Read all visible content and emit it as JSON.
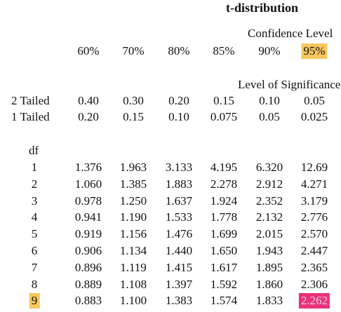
{
  "header": {
    "title": "t-distribution",
    "confidence_label": "Confidence Level",
    "significance_label": "Level of Significance"
  },
  "table": {
    "percents": [
      "60%",
      "70%",
      "80%",
      "85%",
      "90%",
      "95%"
    ],
    "tails": [
      {
        "label": "2 Tailed",
        "values": [
          "0.40",
          "0.30",
          "0.20",
          "0.15",
          "0.10",
          "0.05"
        ]
      },
      {
        "label": "1 Tailed",
        "values": [
          "0.20",
          "0.15",
          "0.10",
          "0.075",
          "0.05",
          "0.025"
        ]
      }
    ],
    "df_label": "df",
    "rows": [
      {
        "df": "1",
        "values": [
          "1.376",
          "1.963",
          "3.133",
          "4.195",
          "6.320",
          "12.69"
        ]
      },
      {
        "df": "2",
        "values": [
          "1.060",
          "1.385",
          "1.883",
          "2.278",
          "2.912",
          "4.271"
        ]
      },
      {
        "df": "3",
        "values": [
          "0.978",
          "1.250",
          "1.637",
          "1.924",
          "2.352",
          "3.179"
        ]
      },
      {
        "df": "4",
        "values": [
          "0.941",
          "1.190",
          "1.533",
          "1.778",
          "2.132",
          "2.776"
        ]
      },
      {
        "df": "5",
        "values": [
          "0.919",
          "1.156",
          "1.476",
          "1.699",
          "2.015",
          "2.570"
        ]
      },
      {
        "df": "6",
        "values": [
          "0.906",
          "1.134",
          "1.440",
          "1.650",
          "1.943",
          "2.447"
        ]
      },
      {
        "df": "7",
        "values": [
          "0.896",
          "1.119",
          "1.415",
          "1.617",
          "1.895",
          "2.365"
        ]
      },
      {
        "df": "8",
        "values": [
          "0.889",
          "1.108",
          "1.397",
          "1.592",
          "1.860",
          "2.306"
        ]
      },
      {
        "df": "9",
        "values": [
          "0.883",
          "1.100",
          "1.383",
          "1.574",
          "1.833",
          "2.262"
        ]
      }
    ]
  }
}
